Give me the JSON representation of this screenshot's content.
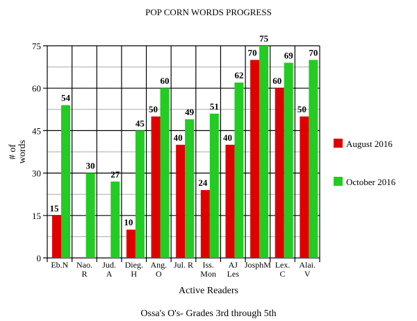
{
  "chart_data": {
    "type": "bar",
    "title": "POP CORN WORDS PROGRESS",
    "subtitle": "Ossa's O's- Grades 3rd through 5th",
    "xlabel": "Active Readers",
    "ylabel": [
      "# of",
      "words"
    ],
    "ylim": [
      0,
      75
    ],
    "yticks": [
      0,
      15,
      30,
      45,
      60,
      75
    ],
    "grid": true,
    "legend_position": "right",
    "categories": [
      [
        "Eb.N"
      ],
      [
        "Nao.",
        "R"
      ],
      [
        "Jud.",
        "A"
      ],
      [
        "Dieg.",
        "H"
      ],
      [
        "Ang.",
        "O"
      ],
      [
        "Jul. R"
      ],
      [
        "Iss.",
        "Mon"
      ],
      [
        "AJ",
        "Les"
      ],
      [
        "JosphM"
      ],
      [
        "Lex.",
        "C"
      ],
      [
        "Alai.",
        "V"
      ]
    ],
    "series": [
      {
        "name": "August 2016",
        "color": "#e00000",
        "values": [
          15,
          null,
          null,
          10,
          50,
          40,
          24,
          40,
          70,
          60,
          50
        ]
      },
      {
        "name": "October 2016",
        "color": "#22cc22",
        "values": [
          54,
          30,
          27,
          45,
          60,
          49,
          51,
          62,
          75,
          69,
          70
        ]
      }
    ]
  }
}
